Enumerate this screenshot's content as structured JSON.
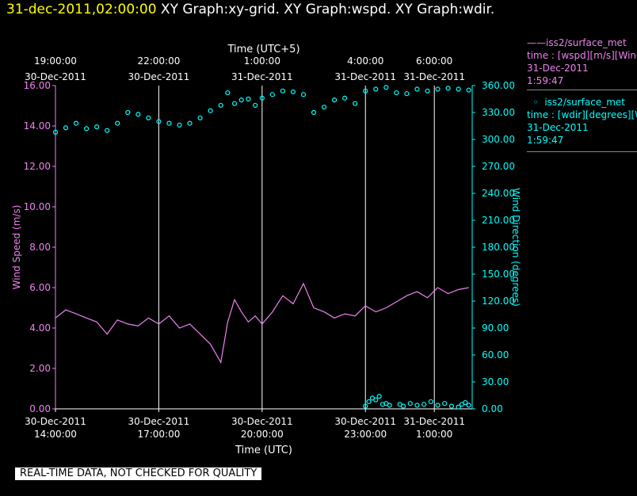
{
  "header": {
    "timestamp": "31-dec-2011,02:00:00",
    "titles": "XY Graph:xy-grid.  XY Graph:wspd.  XY Graph:wdir."
  },
  "colors": {
    "wspd": "#ee82ee",
    "wdir": "#00ffff",
    "grid": "#ffffff",
    "background": "#000000"
  },
  "legend": {
    "wspd": {
      "title": "iss2/surface_met",
      "line1": "time : [wspd][m/s][Wind",
      "date": "31-Dec-2011",
      "time": "1:59:47"
    },
    "wdir": {
      "title": "iss2/surface_met",
      "line1": "time : [wdir][degrees][W",
      "date": "31-Dec-2011",
      "time": "1:59:47"
    }
  },
  "note": "REAL-TIME DATA, NOT CHECKED FOR QUALITY",
  "chart_data": {
    "type": "line",
    "top_axis": {
      "label": "Time (UTC+5)",
      "ticks": [
        {
          "time": "19:00:00",
          "date": "30-Dec-2011"
        },
        {
          "time": "22:00:00",
          "date": "30-Dec-2011"
        },
        {
          "time": "1:00:00",
          "date": "31-Dec-2011"
        },
        {
          "time": "4:00:00",
          "date": "31-Dec-2011"
        },
        {
          "time": "6:00:00",
          "date": "31-Dec-2011"
        }
      ]
    },
    "bottom_axis": {
      "label": "Time (UTC)",
      "range_hours": [
        14,
        26.1
      ],
      "ticks": [
        {
          "date": "30-Dec-2011",
          "time": "14:00:00",
          "hour": 14
        },
        {
          "date": "30-Dec-2011",
          "time": "17:00:00",
          "hour": 17
        },
        {
          "date": "30-Dec-2011",
          "time": "20:00:00",
          "hour": 20
        },
        {
          "date": "30-Dec-2011",
          "time": "23:00:00",
          "hour": 23
        },
        {
          "date": "31-Dec-2011",
          "time": "1:00:00",
          "hour": 25
        }
      ]
    },
    "left_axis": {
      "label": "Wind Speed (m/s)",
      "ylim": [
        0,
        16
      ],
      "ticks": [
        "0.00",
        "2.00",
        "4.00",
        "6.00",
        "8.00",
        "10.00",
        "12.00",
        "14.00",
        "16.00"
      ]
    },
    "right_axis": {
      "label": "Wind Direction (degrees)",
      "ylim": [
        0,
        360
      ],
      "ticks": [
        "0.00",
        "30.00",
        "60.00",
        "90.00",
        "120.00",
        "150.00",
        "180.00",
        "210.00",
        "240.00",
        "270.00",
        "300.00",
        "330.00",
        "360.00"
      ]
    },
    "grid": "vertical lines at bottom-axis ticks",
    "series": [
      {
        "name": "iss2/surface_met wspd",
        "style": "line",
        "x_hours": [
          14.0,
          14.3,
          14.6,
          14.9,
          15.2,
          15.5,
          15.8,
          16.1,
          16.4,
          16.7,
          17.0,
          17.3,
          17.6,
          17.9,
          18.2,
          18.5,
          18.8,
          19.0,
          19.2,
          19.4,
          19.6,
          19.8,
          20.0,
          20.3,
          20.6,
          20.9,
          21.2,
          21.5,
          21.8,
          22.1,
          22.4,
          22.7,
          23.0,
          23.3,
          23.6,
          23.9,
          24.2,
          24.5,
          24.8,
          25.1,
          25.4,
          25.7,
          26.0
        ],
        "values": [
          4.5,
          4.9,
          4.7,
          4.5,
          4.3,
          3.7,
          4.4,
          4.2,
          4.1,
          4.5,
          4.2,
          4.6,
          4.0,
          4.2,
          3.7,
          3.2,
          2.3,
          4.3,
          5.4,
          4.8,
          4.3,
          4.6,
          4.2,
          4.8,
          5.6,
          5.2,
          6.2,
          5.0,
          4.8,
          4.5,
          4.7,
          4.6,
          5.1,
          4.8,
          5.0,
          5.3,
          5.6,
          5.8,
          5.5,
          6.0,
          5.7,
          5.9,
          6.0
        ]
      },
      {
        "name": "iss2/surface_met wdir",
        "style": "markers",
        "x_hours": [
          14.0,
          14.3,
          14.6,
          14.9,
          15.2,
          15.5,
          15.8,
          16.1,
          16.4,
          16.7,
          17.0,
          17.3,
          17.6,
          17.9,
          18.2,
          18.5,
          18.8,
          19.0,
          19.2,
          19.4,
          19.6,
          19.8,
          20.0,
          20.3,
          20.6,
          20.9,
          21.2,
          21.5,
          21.8,
          22.1,
          22.4,
          22.7,
          23.0,
          23.3,
          23.6,
          23.9,
          24.2,
          24.5,
          24.8,
          25.1,
          25.4,
          25.7,
          26.0
        ],
        "values": [
          308,
          313,
          318,
          312,
          314,
          310,
          318,
          330,
          328,
          324,
          320,
          318,
          316,
          318,
          324,
          332,
          338,
          352,
          340,
          344,
          345,
          338,
          346,
          350,
          354,
          353,
          350,
          330,
          336,
          344,
          346,
          340,
          354,
          356,
          358,
          352,
          351,
          356,
          354,
          356,
          357,
          356,
          355
        ],
        "low_segment": {
          "x_hours": [
            23.0,
            23.1,
            23.2,
            23.3,
            23.4,
            23.5,
            23.6,
            23.7,
            24.0,
            24.1,
            24.3,
            24.5,
            24.7,
            24.9,
            25.1,
            25.3,
            25.5,
            25.7,
            25.8,
            25.9,
            26.0
          ],
          "values": [
            3,
            8,
            12,
            10,
            14,
            5,
            6,
            4,
            5,
            3,
            6,
            4,
            5,
            8,
            4,
            6,
            3,
            2,
            5,
            7,
            4
          ]
        }
      }
    ]
  }
}
